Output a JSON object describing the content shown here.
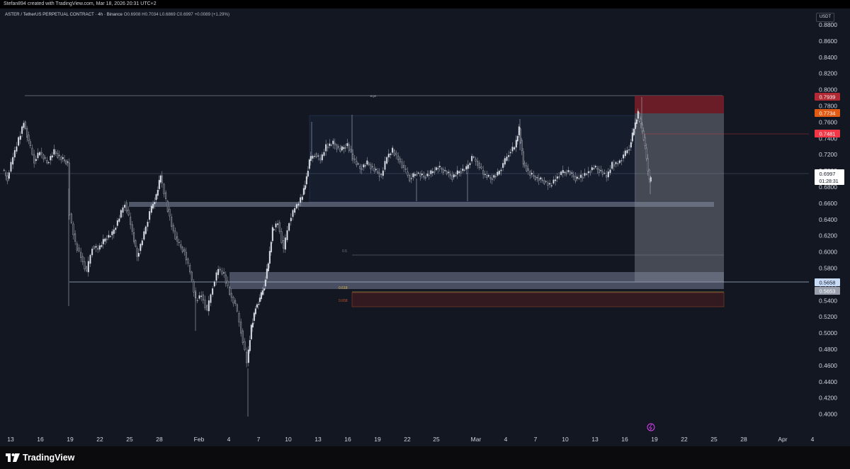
{
  "header": {
    "credit": "Stefan894 created with TradingView.com, Mar 18, 2026 20:31 UTC+2"
  },
  "symbol": {
    "name": "ASTER / TetherUS PERPETUAL CONTRACT · 4h · Binance",
    "ohlc": "O0.6908 H0.7034 L0.6869 C0.6997 +0.0089 (+1.29%)"
  },
  "currency": "USDT",
  "price_axis": [
    "0.8800",
    "0.8600",
    "0.8400",
    "0.8200",
    "0.8000",
    "0.7800",
    "0.7600",
    "0.7400",
    "0.7200",
    "0.7000",
    "0.6800",
    "0.6600",
    "0.6400",
    "0.6200",
    "0.6000",
    "0.5800",
    "0.5600",
    "0.5400",
    "0.5200",
    "0.5000",
    "0.4800",
    "0.4600",
    "0.4400",
    "0.4200",
    "0.4000"
  ],
  "time_axis": [
    "13",
    "16",
    "19",
    "22",
    "25",
    "28",
    "Feb",
    "4",
    "7",
    "10",
    "13",
    "16",
    "19",
    "22",
    "25",
    "Mar",
    "4",
    "7",
    "10",
    "13",
    "16",
    "19",
    "22",
    "25",
    "28",
    "Apr",
    "4"
  ],
  "price_labels": {
    "stop": "0.7939",
    "entry": "0.7734",
    "level": "0.7481",
    "last": "0.6997",
    "countdown": "01:28:31",
    "target1": "0.5658",
    "target2": "0.5653"
  },
  "annotations": {
    "top_label": "EQH",
    "fib_05": "0.5",
    "fib_0618": "0.618",
    "fib_0658": "0.658"
  },
  "colors": {
    "background": "#131722",
    "up": "#d1d4dc",
    "stop_zone": "#7a1f27",
    "entry_badge": "#e35a12",
    "level_badge": "#f23645",
    "fib_gold": "#d4b24c",
    "fib_orange": "#c0542c"
  },
  "footer": {
    "brand": "TradingView"
  }
}
